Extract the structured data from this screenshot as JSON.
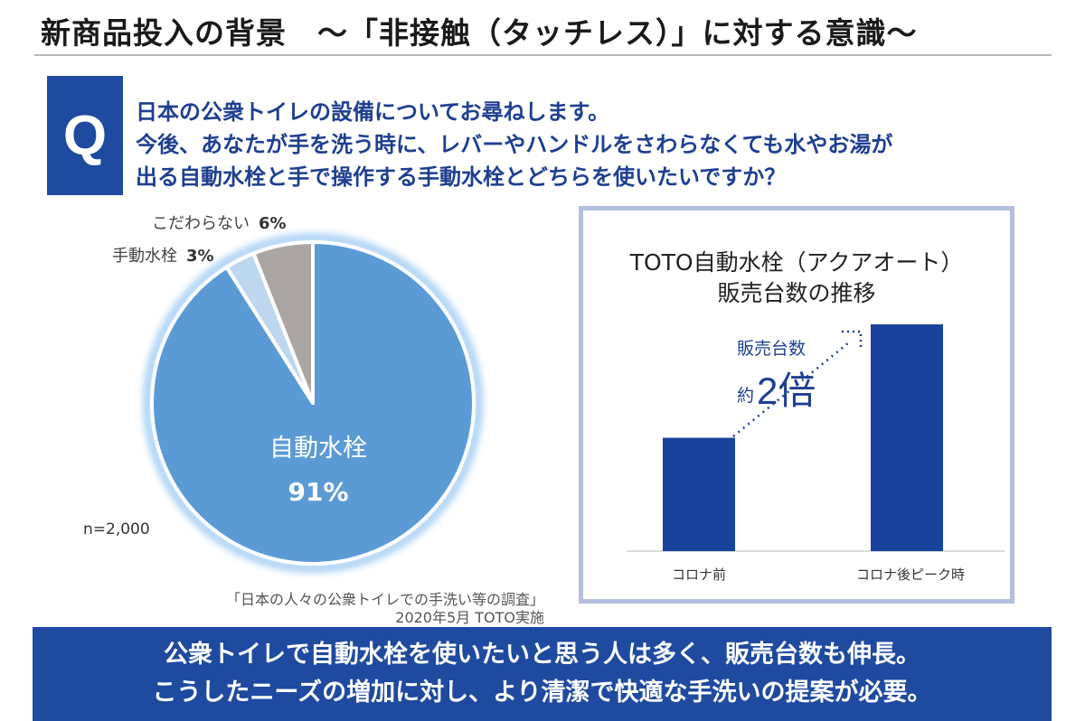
{
  "header": {
    "title": "新商品投入の背景　～「非接触（タッチレス）」に対する意識～"
  },
  "question": {
    "badge": "Q",
    "lines": [
      "日本の公衆トイレの設備についてお尋ねします。",
      "今後、あなたが手を洗う時に、レバーやハンドルをさわらなくても水やお湯が",
      "出る自動水栓と手で操作する手動水栓とどちらを使いたいですか？"
    ]
  },
  "survey": {
    "n": "n=2,000",
    "source_line1": "「日本の人々の公衆トイレでの手洗い等の調査」",
    "source_line2": "2020年5月 TOTO実施"
  },
  "chart_data": [
    {
      "type": "pie",
      "categories": [
        "自動水栓",
        "手動水栓",
        "こだわらない"
      ],
      "values": [
        91,
        3,
        6
      ],
      "value_labels": [
        "91%",
        "3%",
        "6%"
      ],
      "colors": [
        "#5b9bd5",
        "#bdd7ee",
        "#aba5a3"
      ]
    },
    {
      "type": "bar",
      "title_line1": "TOTO自動水栓（アクアオート）",
      "title_line2": "販売台数の推移",
      "categories": [
        "コロナ前",
        "コロナ後ピーク時"
      ],
      "values": [
        1,
        2
      ],
      "ylim": [
        0,
        2.05
      ],
      "color": "#1a439b",
      "annotation": {
        "line1": "販売台数",
        "prefix": "約",
        "emphasis": "2倍"
      }
    }
  ],
  "banner": {
    "line1": "公衆トイレで自動水栓を使いたいと思う人は多く、販売台数も伸長。",
    "line2": "こうしたニーズの増加に対し、より清潔で快適な手洗いの提案が必要。"
  }
}
